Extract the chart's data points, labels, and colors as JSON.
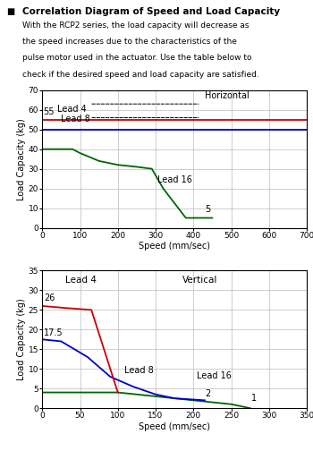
{
  "title_text": "Correlation Diagram of Speed and Load Capacity",
  "description": "With the RCP2 series, the load capacity will decrease as\nthe speed increases due to the characteristics of the\npulse motor used in the actuator. Use the table below to\ncheck if the desired speed and load capacity are satisfied.",
  "horiz": {
    "title": "Horizontal",
    "xlabel": "Speed (mm/sec)",
    "ylabel": "Load Capacity (kg)",
    "xlim": [
      0,
      700
    ],
    "ylim": [
      0,
      70
    ],
    "xticks": [
      0,
      100,
      200,
      300,
      400,
      500,
      600,
      700
    ],
    "yticks": [
      0,
      10,
      20,
      30,
      40,
      50,
      60,
      70
    ],
    "lead4": {
      "x": [
        0,
        700
      ],
      "y": [
        55,
        55
      ],
      "color": "#cc0000"
    },
    "lead8": {
      "x": [
        0,
        700
      ],
      "y": [
        50,
        50
      ],
      "color": "#0000cc"
    },
    "lead16": {
      "x": [
        0,
        80,
        100,
        150,
        200,
        250,
        290,
        320,
        380,
        450
      ],
      "y": [
        40,
        40,
        38,
        34,
        32,
        31,
        30,
        20,
        5,
        5
      ],
      "color": "#006600"
    }
  },
  "vert": {
    "title": "Vertical",
    "xlabel": "Speed (mm/sec)",
    "ylabel": "Load Capacity (kg)",
    "xlim": [
      0,
      350
    ],
    "ylim": [
      0,
      35
    ],
    "xticks": [
      0,
      50,
      100,
      150,
      200,
      250,
      300,
      350
    ],
    "yticks": [
      0,
      5,
      10,
      15,
      20,
      25,
      30,
      35
    ],
    "lead4": {
      "x": [
        0,
        30,
        65,
        100
      ],
      "y": [
        26,
        25.5,
        25,
        4
      ],
      "color": "#cc0000"
    },
    "lead8": {
      "x": [
        0,
        25,
        60,
        90,
        120,
        150,
        175,
        215
      ],
      "y": [
        17.5,
        17,
        13,
        8,
        5.5,
        3.5,
        2.5,
        2
      ],
      "color": "#0000cc"
    },
    "lead16": {
      "x": [
        0,
        100,
        150,
        200,
        250,
        275
      ],
      "y": [
        4,
        4,
        3,
        2,
        1,
        0
      ],
      "color": "#006600"
    }
  },
  "bg_color": "#ffffff",
  "grid_color": "#bbbbbb",
  "font_size_title": 7.5,
  "font_size_desc": 6.5,
  "font_size_axis": 7,
  "font_size_tick": 6.5,
  "font_size_annot": 7
}
